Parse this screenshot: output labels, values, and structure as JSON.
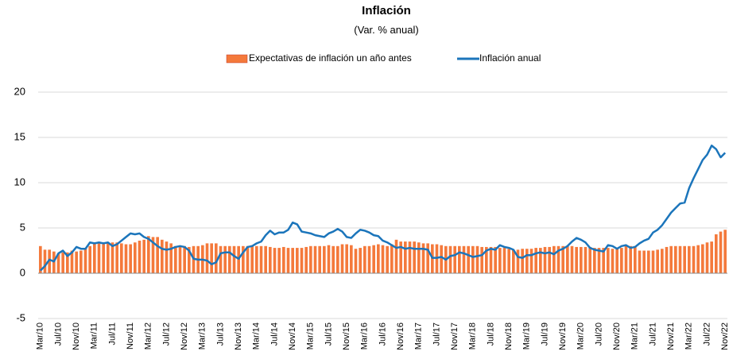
{
  "chart_data": {
    "type": "bar-line",
    "title": "Inflación",
    "subtitle": "(Var. % anual)",
    "categories": [
      "Mar/10",
      null,
      null,
      null,
      "Jul/10",
      null,
      null,
      null,
      "Nov/10",
      null,
      null,
      null,
      "Mar/11",
      null,
      null,
      null,
      "Jul/11",
      null,
      null,
      null,
      "Nov/11",
      null,
      null,
      null,
      "Mar/12",
      null,
      null,
      null,
      "Jul/12",
      null,
      null,
      null,
      "Nov/12",
      null,
      null,
      null,
      "Mar/13",
      null,
      null,
      null,
      "Jul/13",
      null,
      null,
      null,
      "Nov/13",
      null,
      null,
      null,
      "Mar/14",
      null,
      null,
      null,
      "Jul/14",
      null,
      null,
      null,
      "Nov/14",
      null,
      null,
      null,
      "Mar/15",
      null,
      null,
      null,
      "Jul/15",
      null,
      null,
      null,
      "Nov/15",
      null,
      null,
      null,
      "Mar/16",
      null,
      null,
      null,
      "Jul/16",
      null,
      null,
      null,
      "Nov/16",
      null,
      null,
      null,
      "Mar/17",
      null,
      null,
      null,
      "Jul/17",
      null,
      null,
      null,
      "Nov/17",
      null,
      null,
      null,
      "Mar/18",
      null,
      null,
      null,
      "Jul/18",
      null,
      null,
      null,
      "Nov/18",
      null,
      null,
      null,
      "Mar/19",
      null,
      null,
      null,
      "Jul/19",
      null,
      null,
      null,
      "Nov/19",
      null,
      null,
      null,
      "Mar/20",
      null,
      null,
      null,
      "Jul/20",
      null,
      null,
      null,
      "Nov/20",
      null,
      null,
      null,
      "Mar/21",
      null,
      null,
      null,
      "Jul/21",
      null,
      null,
      null,
      "Nov/21",
      null,
      null,
      null,
      "Mar/22",
      null,
      null,
      null,
      "Jul/22",
      null,
      null,
      null,
      "Nov/22"
    ],
    "series": [
      {
        "name": "Expectativas de inflación un año antes",
        "kind": "bar",
        "color": "#f4793b",
        "values": [
          3.0,
          2.6,
          2.6,
          2.4,
          2.2,
          2.3,
          2.3,
          2.5,
          2.4,
          2.5,
          2.8,
          3.0,
          3.4,
          3.3,
          3.2,
          3.3,
          3.4,
          3.4,
          3.3,
          3.2,
          3.2,
          3.4,
          3.6,
          3.7,
          4.1,
          4.0,
          4.0,
          3.7,
          3.5,
          3.3,
          3.0,
          3.0,
          3.0,
          2.9,
          3.0,
          3.0,
          3.1,
          3.3,
          3.3,
          3.3,
          3.0,
          3.0,
          3.0,
          3.0,
          3.0,
          3.0,
          3.0,
          3.1,
          3.0,
          3.0,
          3.0,
          2.9,
          2.8,
          2.8,
          2.9,
          2.8,
          2.8,
          2.8,
          2.8,
          2.9,
          3.0,
          3.0,
          3.0,
          3.0,
          3.1,
          3.0,
          3.0,
          3.2,
          3.2,
          3.1,
          2.7,
          2.8,
          3.0,
          3.0,
          3.1,
          3.2,
          3.1,
          3.0,
          3.2,
          3.7,
          3.5,
          3.5,
          3.5,
          3.5,
          3.4,
          3.3,
          3.3,
          3.2,
          3.2,
          3.1,
          3.0,
          3.0,
          3.0,
          3.0,
          3.0,
          3.0,
          3.0,
          3.0,
          2.9,
          2.9,
          2.9,
          2.9,
          2.8,
          2.8,
          2.7,
          2.6,
          2.6,
          2.7,
          2.7,
          2.7,
          2.8,
          2.8,
          2.9,
          2.9,
          3.0,
          3.0,
          3.0,
          3.0,
          3.0,
          2.9,
          2.9,
          2.9,
          2.9,
          2.8,
          2.8,
          2.8,
          2.8,
          2.7,
          2.8,
          2.8,
          3.0,
          3.0,
          3.0,
          2.5,
          2.5,
          2.5,
          2.5,
          2.6,
          2.7,
          2.9,
          3.0,
          3.0,
          3.0,
          3.0,
          3.0,
          3.0,
          3.1,
          3.2,
          3.4,
          3.5,
          4.3,
          4.6,
          4.8
        ]
      },
      {
        "name": "Inflación anual",
        "kind": "line",
        "color": "#1b75bb",
        "values": [
          0.3,
          0.8,
          1.5,
          1.3,
          2.2,
          2.5,
          1.9,
          2.3,
          2.9,
          2.7,
          2.7,
          3.4,
          3.3,
          3.4,
          3.3,
          3.4,
          3.0,
          3.2,
          3.6,
          4.0,
          4.4,
          4.3,
          4.4,
          4.0,
          3.8,
          3.4,
          3.0,
          2.7,
          2.6,
          2.7,
          2.9,
          3.0,
          2.9,
          2.5,
          1.6,
          1.5,
          1.5,
          1.4,
          1.0,
          1.2,
          2.2,
          2.3,
          2.3,
          1.9,
          1.6,
          2.3,
          2.9,
          3.0,
          3.3,
          3.5,
          4.2,
          4.7,
          4.3,
          4.5,
          4.5,
          4.8,
          5.6,
          5.4,
          4.6,
          4.5,
          4.4,
          4.2,
          4.1,
          4.0,
          4.4,
          4.6,
          4.9,
          4.6,
          4.0,
          3.9,
          4.4,
          4.8,
          4.7,
          4.5,
          4.2,
          4.1,
          3.6,
          3.4,
          3.1,
          2.8,
          2.9,
          2.7,
          2.8,
          2.7,
          2.7,
          2.7,
          2.6,
          1.7,
          1.7,
          1.8,
          1.5,
          1.9,
          2.0,
          2.3,
          2.2,
          2.0,
          1.8,
          1.9,
          2.0,
          2.5,
          2.7,
          2.6,
          3.1,
          2.9,
          2.8,
          2.6,
          1.8,
          1.7,
          2.0,
          2.0,
          2.2,
          2.3,
          2.2,
          2.3,
          2.1,
          2.5,
          2.7,
          3.0,
          3.5,
          3.9,
          3.7,
          3.4,
          2.8,
          2.6,
          2.5,
          2.4,
          3.1,
          3.0,
          2.7,
          3.0,
          3.1,
          2.8,
          2.9,
          3.3,
          3.6,
          3.8,
          4.5,
          4.8,
          5.3,
          6.0,
          6.7,
          7.2,
          7.7,
          7.8,
          9.4,
          10.5,
          11.5,
          12.5,
          13.1,
          14.1,
          13.7,
          12.8,
          13.3
        ]
      }
    ],
    "ylim": [
      -5,
      20
    ],
    "yticks": [
      -5,
      0,
      5,
      10,
      15,
      20
    ],
    "grid": true,
    "legend": "top"
  }
}
